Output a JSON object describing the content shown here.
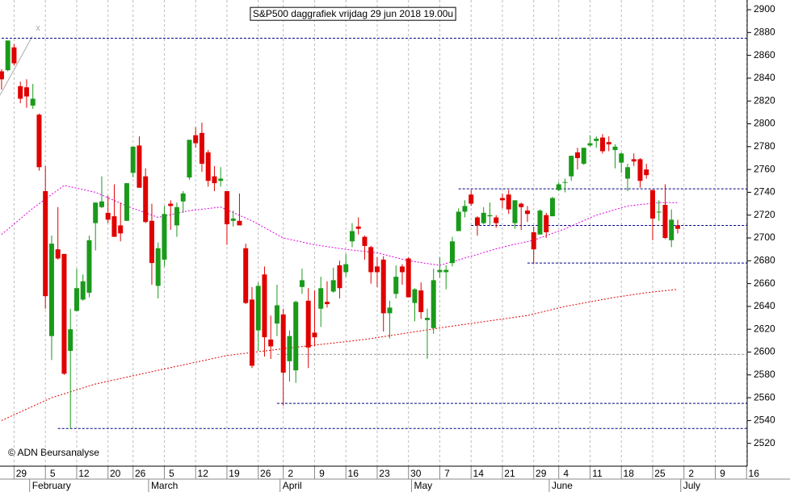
{
  "chart_data": {
    "type": "candlestick",
    "title": "S&P500 daggrafiek vrijdag 29 jun 2018 19.00u",
    "copyright": "© ADN Beursanalyse",
    "trend_marker": "x",
    "up_color": "#1a9a1a",
    "down_color": "#e00000",
    "xlim": [
      -0.25,
      119.1
    ],
    "ylim": [
      2500,
      2908.5
    ],
    "yticks": [
      2520,
      2540,
      2560,
      2580,
      2600,
      2620,
      2640,
      2660,
      2680,
      2700,
      2720,
      2740,
      2760,
      2780,
      2800,
      2820,
      2840,
      2860,
      2880,
      2900
    ],
    "xticks": [
      {
        "value": 2,
        "label": "29"
      },
      {
        "value": 7,
        "label": "5"
      },
      {
        "value": 12,
        "label": "12"
      },
      {
        "value": 17,
        "label": "20"
      },
      {
        "value": 21,
        "label": "26"
      },
      {
        "value": 26,
        "label": "5"
      },
      {
        "value": 31,
        "label": "12"
      },
      {
        "value": 36,
        "label": "19"
      },
      {
        "value": 41,
        "label": "26"
      },
      {
        "value": 45,
        "label": "2"
      },
      {
        "value": 50,
        "label": "9"
      },
      {
        "value": 55,
        "label": "16"
      },
      {
        "value": 60,
        "label": "23"
      },
      {
        "value": 65,
        "label": "30"
      },
      {
        "value": 70,
        "label": "7"
      },
      {
        "value": 75,
        "label": "14"
      },
      {
        "value": 80,
        "label": "21"
      },
      {
        "value": 85,
        "label": "29"
      },
      {
        "value": 89,
        "label": "4"
      },
      {
        "value": 94,
        "label": "11"
      },
      {
        "value": 99,
        "label": "18"
      },
      {
        "value": 104,
        "label": "25"
      },
      {
        "value": 109,
        "label": "2"
      },
      {
        "value": 114,
        "label": "9"
      },
      {
        "value": 119,
        "label": "16"
      }
    ],
    "month_ticks": [
      {
        "value": 5,
        "label": "February"
      },
      {
        "value": 24,
        "label": "March"
      },
      {
        "value": 45,
        "label": "April"
      },
      {
        "value": 66,
        "label": "May"
      },
      {
        "value": 88,
        "label": "June"
      },
      {
        "value": 109,
        "label": "July"
      }
    ],
    "open": [
      2846,
      2847,
      2867,
      2833,
      2832,
      2816,
      2808,
      2741,
      2614,
      2690,
      2686,
      2601,
      2636,
      2646,
      2652,
      2713,
      2727,
      2722,
      2719,
      2711,
      2715,
      2757,
      2781,
      2754,
      2715,
      2658,
      2681,
      2730,
      2711,
      2732,
      2753,
      2790,
      2792,
      2775,
      2754,
      2750,
      2741,
      2715,
      2715,
      2691,
      2646,
      2619,
      2668,
      2611,
      2625,
      2633,
      2592,
      2584,
      2657,
      2645,
      2617,
      2638,
      2644,
      2653,
      2676,
      2670,
      2697,
      2710,
      2701,
      2692,
      2675,
      2681,
      2634,
      2651,
      2675,
      2682,
      2643,
      2654,
      2628,
      2621,
      2670,
      2670,
      2678,
      2706,
      2723,
      2738,
      2718,
      2713,
      2719,
      2718,
      2735,
      2738,
      2713,
      2730,
      2724,
      2705,
      2703,
      2720,
      2719,
      2742,
      2749,
      2754,
      2775,
      2765,
      2781,
      2785,
      2788,
      2784,
      2777,
      2766,
      2752,
      2769,
      2769,
      2760,
      2742,
      2723,
      2729,
      2698,
      2711
    ],
    "high": [
      2848,
      2873,
      2870,
      2837,
      2839,
      2835,
      2809,
      2763,
      2702,
      2727,
      2686,
      2638,
      2673,
      2668,
      2702,
      2731,
      2754,
      2737,
      2747,
      2731,
      2748,
      2780,
      2789,
      2761,
      2730,
      2696,
      2728,
      2733,
      2731,
      2741,
      2786,
      2797,
      2801,
      2777,
      2763,
      2762,
      2741,
      2724,
      2739,
      2695,
      2657,
      2661,
      2675,
      2632,
      2659,
      2638,
      2619,
      2645,
      2673,
      2656,
      2654,
      2666,
      2662,
      2674,
      2680,
      2686,
      2713,
      2718,
      2702,
      2693,
      2683,
      2684,
      2645,
      2676,
      2677,
      2683,
      2656,
      2661,
      2638,
      2673,
      2683,
      2676,
      2701,
      2726,
      2733,
      2742,
      2719,
      2727,
      2731,
      2720,
      2739,
      2742,
      2733,
      2731,
      2728,
      2710,
      2725,
      2722,
      2736,
      2749,
      2752,
      2772,
      2779,
      2779,
      2790,
      2789,
      2791,
      2789,
      2782,
      2775,
      2765,
      2774,
      2770,
      2765,
      2742,
      2733,
      2747,
      2725,
      2716
    ],
    "low": [
      2830,
      2846,
      2851,
      2818,
      2814,
      2813,
      2759,
      2638,
      2593,
      2681,
      2580,
      2533,
      2636,
      2645,
      2648,
      2689,
      2726,
      2713,
      2701,
      2697,
      2715,
      2753,
      2744,
      2713,
      2659,
      2647,
      2675,
      2707,
      2701,
      2722,
      2751,
      2779,
      2758,
      2745,
      2741,
      2745,
      2694,
      2710,
      2711,
      2642,
      2586,
      2601,
      2596,
      2594,
      2614,
      2553,
      2574,
      2573,
      2651,
      2586,
      2605,
      2622,
      2639,
      2652,
      2647,
      2666,
      2692,
      2703,
      2681,
      2660,
      2657,
      2618,
      2612,
      2647,
      2659,
      2648,
      2627,
      2629,
      2594,
      2616,
      2665,
      2655,
      2675,
      2706,
      2718,
      2728,
      2702,
      2712,
      2711,
      2709,
      2726,
      2721,
      2708,
      2707,
      2714,
      2677,
      2703,
      2700,
      2719,
      2741,
      2740,
      2750,
      2760,
      2764,
      2780,
      2779,
      2774,
      2776,
      2761,
      2757,
      2741,
      2763,
      2744,
      2752,
      2698,
      2715,
      2699,
      2692,
      2704
    ],
    "close": [
      2839,
      2873,
      2853,
      2822,
      2824,
      2822,
      2762,
      2649,
      2695,
      2682,
      2581,
      2620,
      2656,
      2662,
      2698,
      2731,
      2732,
      2716,
      2701,
      2704,
      2748,
      2780,
      2744,
      2714,
      2678,
      2691,
      2721,
      2728,
      2727,
      2739,
      2786,
      2783,
      2765,
      2750,
      2748,
      2752,
      2712,
      2717,
      2711,
      2643,
      2588,
      2658,
      2613,
      2605,
      2641,
      2582,
      2614,
      2644,
      2663,
      2604,
      2613,
      2656,
      2642,
      2663,
      2656,
      2677,
      2706,
      2708,
      2693,
      2670,
      2670,
      2634,
      2639,
      2666,
      2670,
      2648,
      2655,
      2635,
      2630,
      2663,
      2672,
      2672,
      2697,
      2723,
      2728,
      2730,
      2711,
      2722,
      2720,
      2713,
      2733,
      2725,
      2733,
      2727,
      2721,
      2690,
      2724,
      2705,
      2735,
      2747,
      2749,
      2772,
      2770,
      2779,
      2783,
      2787,
      2776,
      2782,
      2780,
      2774,
      2762,
      2767,
      2750,
      2755,
      2717,
      2723,
      2700,
      2716,
      2708
    ],
    "moving_averages": [
      {
        "color": "#e000e0",
        "x": [
          0,
          5,
          10,
          15,
          20,
          25,
          30,
          35,
          40,
          45,
          50,
          55,
          60,
          65,
          70,
          75,
          80,
          85,
          90,
          95,
          100,
          105,
          108
        ],
        "values": [
          2703,
          2726,
          2746,
          2740,
          2728,
          2718,
          2724,
          2727,
          2715,
          2700,
          2694,
          2690,
          2687,
          2680,
          2676,
          2684,
          2692,
          2698,
          2708,
          2720,
          2728,
          2731,
          2731
        ]
      },
      {
        "color": "#e00000",
        "x": [
          0,
          8,
          15,
          25,
          36,
          45,
          58,
          71,
          84,
          90,
          98,
          103,
          108
        ],
        "values": [
          2540,
          2560,
          2572,
          2584,
          2597,
          2603,
          2611,
          2622,
          2632,
          2640,
          2648,
          2652,
          2655
        ]
      }
    ],
    "levels": [
      {
        "value": 2875,
        "x_start": 0,
        "color": "#000080"
      },
      {
        "value": 2743,
        "x_start": 73,
        "color": "#000080"
      },
      {
        "value": 2711,
        "x_start": 75,
        "color": "#000080"
      },
      {
        "value": 2678,
        "x_start": 84,
        "color": "#000080"
      },
      {
        "value": 2598,
        "x_start": 44,
        "color": "#999999"
      },
      {
        "value": 2555,
        "x_start": 44,
        "color": "#000080"
      },
      {
        "value": 2533,
        "x_start": 9,
        "color": "#000080"
      }
    ]
  }
}
